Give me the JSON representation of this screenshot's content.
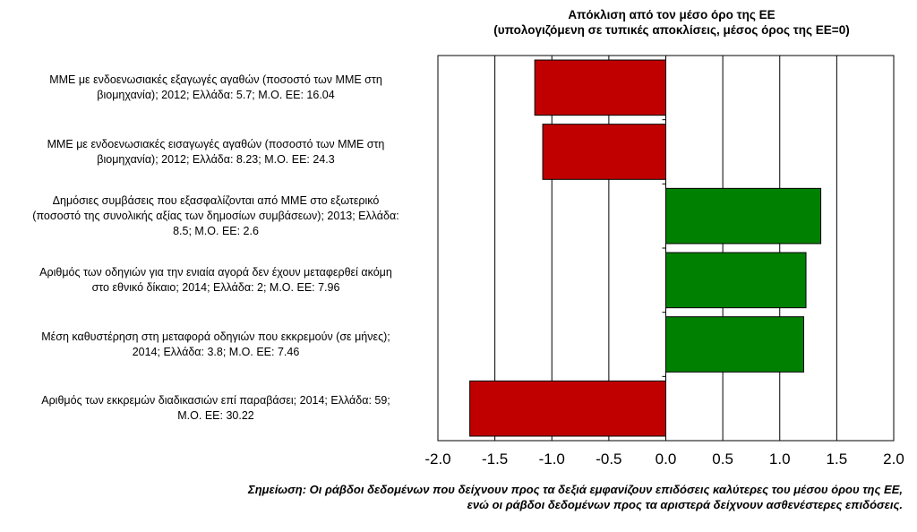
{
  "chart_data": {
    "type": "bar",
    "orientation": "horizontal",
    "title": "Απόκλιση από τον μέσο όρο της ΕΕ",
    "subtitle": "(υπολογιζόμενη σε τυπικές αποκλίσεις, μέσος όρος της ΕΕ=0)",
    "categories": [
      "ΜΜΕ με ενδοενωσιακές  εξαγωγές αγαθών (ποσοστό των ΜΜΕ στη βιομηχανία);  2012; Ελλάδα: 5.7; Μ.Ο. ΕΕ: 16.04",
      "ΜΜΕ με ενδοενωσιακές  εισαγωγές αγαθών (ποσοστό των ΜΜΕ στη βιομηχανία);  2012; Ελλάδα: 8.23; Μ.Ο. ΕΕ: 24.3",
      "Δημόσιες συμβάσεις που εξασφαλίζονται από ΜΜΕ στο εξωτερικό (ποσοστό της συνολικής  αξίας των δημοσίων συμβάσεων); 2013; Ελλάδα: 8.5; Μ.Ο. ΕΕ: 2.6",
      "Αριθμός των οδηγιών  για την ενιαία αγορά δεν έχουν μεταφερθεί ακόμη στο εθνικό δίκαιο;  2014; Ελλάδα: 2; Μ.Ο. ΕΕ: 7.96",
      "Μέση καθυστέρηση στη μεταφορά οδηγιών που εκκρεμούν  (σε μήνες); 2014; Ελλάδα: 3.8; Μ.Ο. ΕΕ: 7.46",
      "Αριθμός των εκκρεμών  διαδικασιών  επί παραβάσει; 2014; Ελλάδα: 59; Μ.Ο. ΕΕ: 30.22"
    ],
    "category_lines": [
      [
        "ΜΜΕ με ενδοενωσιακές  εξαγωγές αγαθών (ποσοστό των ΜΜΕ στη",
        "βιομηχανία);  2012; Ελλάδα: 5.7; Μ.Ο. ΕΕ: 16.04"
      ],
      [
        "ΜΜΕ με ενδοενωσιακές  εισαγωγές αγαθών (ποσοστό των ΜΜΕ στη",
        "βιομηχανία);  2012; Ελλάδα: 8.23; Μ.Ο. ΕΕ: 24.3"
      ],
      [
        "Δημόσιες συμβάσεις που εξασφαλίζονται από ΜΜΕ στο εξωτερικό",
        "(ποσοστό της συνολικής  αξίας των δημοσίων συμβάσεων); 2013; Ελλάδα:",
        "8.5; Μ.Ο. ΕΕ: 2.6"
      ],
      [
        "Αριθμός των οδηγιών  για την ενιαία αγορά δεν έχουν μεταφερθεί ακόμη",
        "στο εθνικό δίκαιο;  2014; Ελλάδα: 2; Μ.Ο. ΕΕ: 7.96"
      ],
      [
        "Μέση καθυστέρηση στη μεταφορά οδηγιών που εκκρεμούν  (σε μήνες);",
        "2014; Ελλάδα: 3.8; Μ.Ο. ΕΕ: 7.46"
      ],
      [
        "Αριθμός των εκκρεμών  διαδικασιών  επί παραβάσει; 2014; Ελλάδα: 59;",
        "Μ.Ο. ΕΕ: 30.22"
      ]
    ],
    "values": [
      -1.15,
      -1.08,
      1.36,
      1.23,
      1.21,
      -1.72
    ],
    "xlim": [
      -2.0,
      2.0
    ],
    "xticks": [
      "-2.0",
      "-1.5",
      "-1.0",
      "-0.5",
      "0.0",
      "0.5",
      "1.0",
      "1.5",
      "2.0"
    ],
    "grid": "vertical",
    "colors": {
      "positive": "#008000",
      "negative": "#c00000"
    },
    "note_lines": [
      "Σημείωση: Οι ράβδοι δεδομένων που δείχνουν προς τα δεξιά εμφανίζουν επιδόσεις καλύτερες του μέσου όρου της ΕΕ,",
      "ενώ οι ράβδοι δεδομένων προς τα αριστερά δείχνουν ασθενέστερες επιδόσεις."
    ]
  }
}
